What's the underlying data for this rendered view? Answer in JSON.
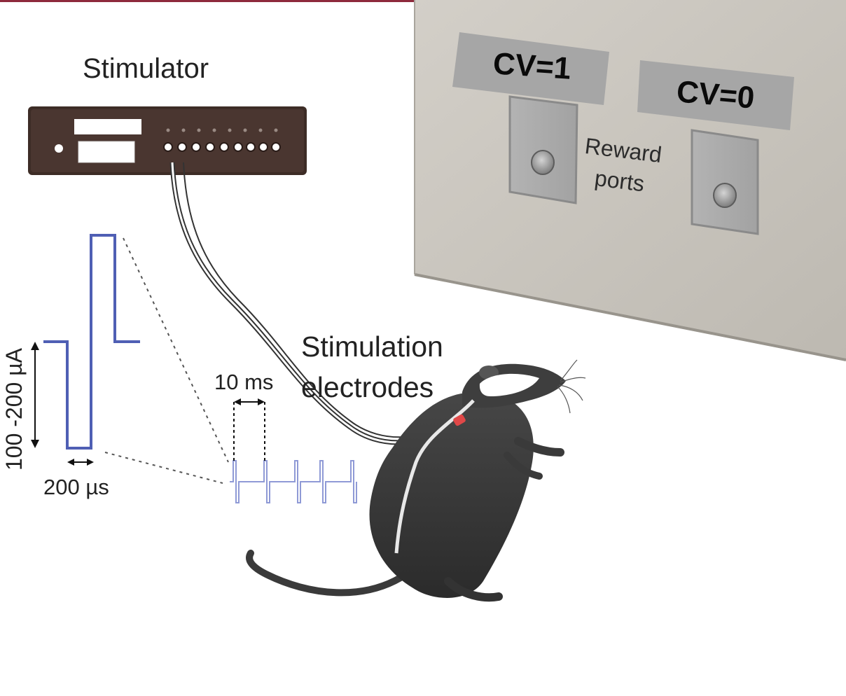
{
  "labels": {
    "stimulator": "Stimulator",
    "stimulation_line1": "Stimulation",
    "stimulation_line2": "electrodes",
    "reward_line1": "Reward",
    "reward_line2": "ports",
    "cv_left": "CV=1",
    "cv_right": "CV=0",
    "amplitude": "100 -200 µA",
    "pulse_width": "200 µs",
    "period": "10 ms"
  },
  "colors": {
    "accent_strip": "#8e2a3c",
    "waveform": "#4f5fb4",
    "train": "#8f9ad6",
    "wall": "#cbc7bf",
    "rat": "#3a3a3a",
    "electrode": "#e04848"
  }
}
